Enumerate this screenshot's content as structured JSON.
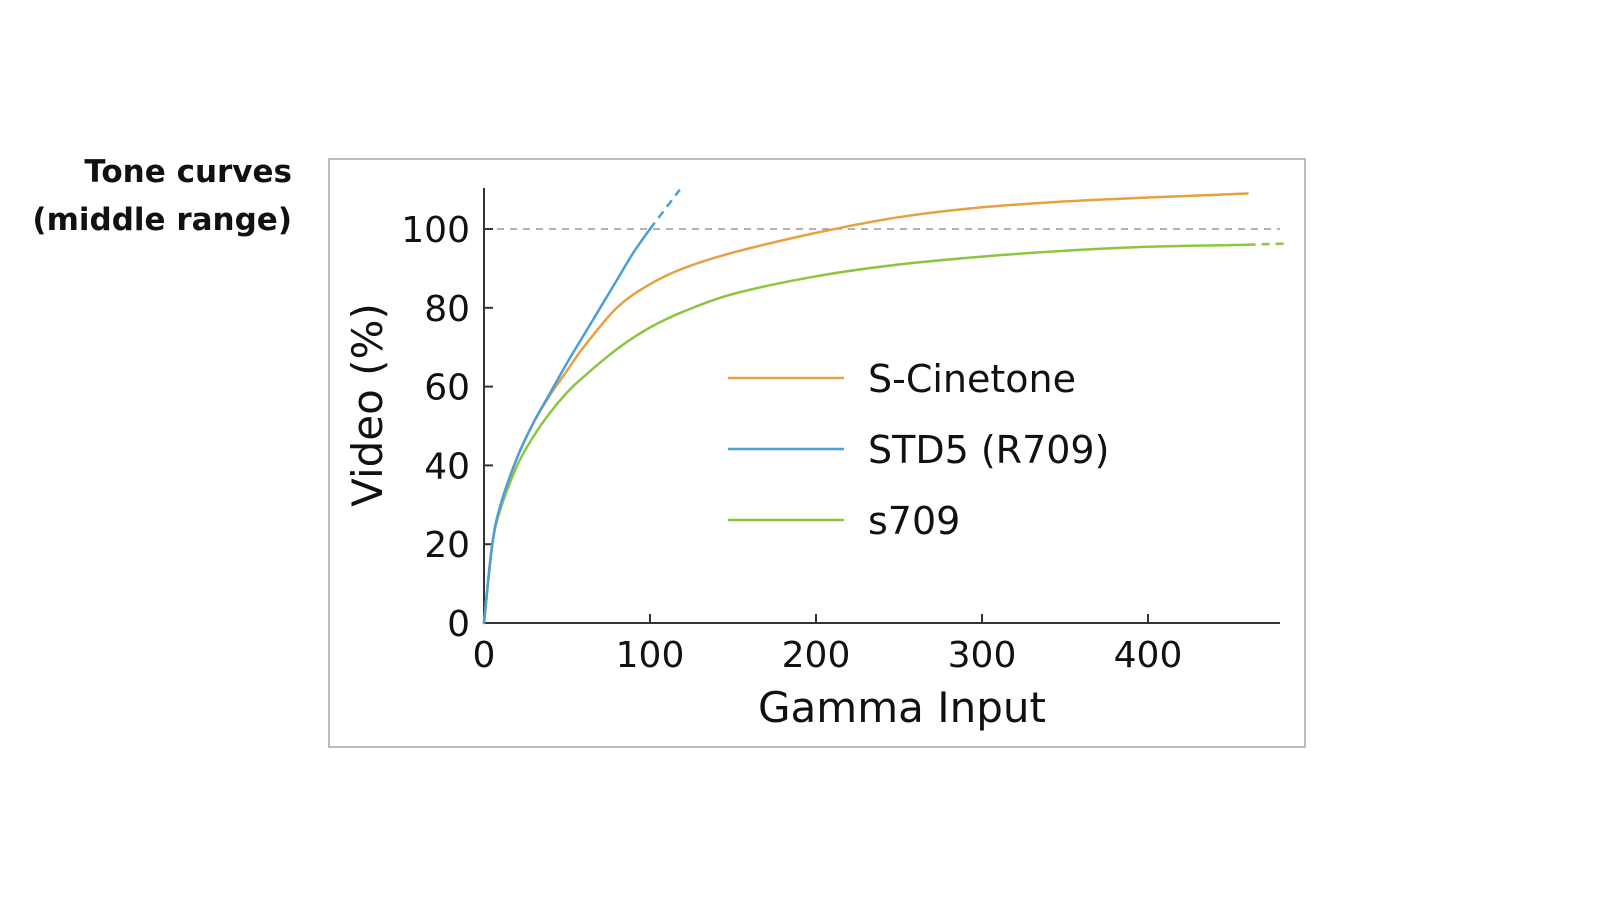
{
  "side_title": {
    "line1": "Tone curves",
    "line2": "(middle range)"
  },
  "chart_data": {
    "type": "line",
    "xlabel": "Gamma Input",
    "ylabel": "Video (%)",
    "xlim": [
      0,
      480
    ],
    "ylim": [
      0,
      110
    ],
    "xticks": [
      0,
      100,
      200,
      300,
      400
    ],
    "yticks": [
      0,
      20,
      40,
      60,
      80,
      100
    ],
    "reference_line": {
      "y": 100,
      "style": "dashed",
      "color": "#999999"
    },
    "legend_position": "center-right",
    "series": [
      {
        "name": "S-Cinetone",
        "color": "#E8A040",
        "x": [
          0,
          5,
          10,
          20,
          30,
          40,
          50,
          60,
          80,
          100,
          120,
          150,
          200,
          250,
          300,
          350,
          400,
          460
        ],
        "y": [
          0,
          20,
          30,
          42,
          51,
          58,
          64,
          70,
          80,
          86,
          90,
          94,
          99,
          103,
          105.5,
          107,
          108,
          109
        ]
      },
      {
        "name": "STD5 (R709)",
        "color": "#4A9FD8",
        "x": [
          0,
          5,
          10,
          20,
          30,
          40,
          50,
          60,
          70,
          80,
          90,
          100
        ],
        "y": [
          0,
          20,
          30,
          42,
          51,
          58.5,
          66,
          73,
          80,
          87,
          94,
          100
        ],
        "dashed_extension": {
          "x": [
            100,
            118
          ],
          "y": [
            100,
            110
          ]
        }
      },
      {
        "name": "s709",
        "color": "#8CC63F",
        "x": [
          0,
          5,
          10,
          20,
          30,
          40,
          50,
          60,
          80,
          100,
          120,
          150,
          200,
          250,
          300,
          350,
          400,
          460
        ],
        "y": [
          0,
          20,
          29,
          40,
          47.5,
          53.5,
          58.5,
          62.5,
          69.5,
          75,
          79,
          83.5,
          88,
          91,
          93,
          94.5,
          95.5,
          96
        ],
        "dashed_extension": {
          "x": [
            460,
            482
          ],
          "y": [
            96,
            96.3
          ]
        }
      }
    ]
  }
}
